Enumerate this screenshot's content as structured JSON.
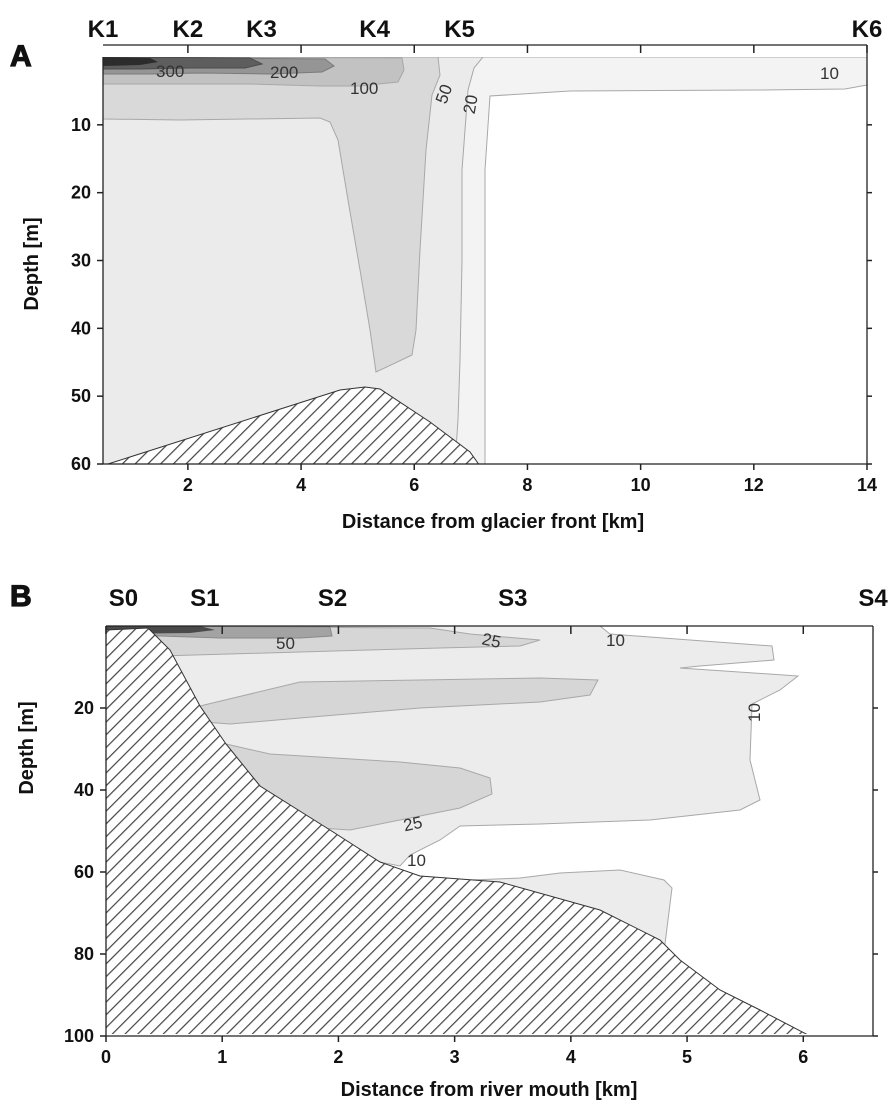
{
  "colors": {
    "level_10": "#f3f3f3",
    "level_20": "#e9e9e9",
    "level_50": "#d5d5d5",
    "level_100": "#bdbdbd",
    "level_200": "#8e8e8e",
    "level_300": "#555555",
    "level_top": "#2a2a2a",
    "hatch": "#444444"
  },
  "chart_data": [
    {
      "panel": "A",
      "type": "contour",
      "xlabel": "Distance from glacier front [km]",
      "ylabel": "Depth [m]",
      "xlim": [
        0.5,
        14
      ],
      "ylim": [
        60,
        0
      ],
      "xticks": [
        2,
        4,
        6,
        8,
        10,
        12,
        14
      ],
      "yticks": [
        10,
        20,
        30,
        40,
        50,
        60
      ],
      "stations": [
        {
          "name": "K1",
          "x": 0.5
        },
        {
          "name": "K2",
          "x": 2
        },
        {
          "name": "K3",
          "x": 3.3
        },
        {
          "name": "K4",
          "x": 5.3
        },
        {
          "name": "K5",
          "x": 6.8
        },
        {
          "name": "K6",
          "x": 14
        }
      ],
      "contour_levels": [
        10,
        20,
        50,
        100,
        200,
        300
      ],
      "contour_labels": [
        {
          "text": "300",
          "x": 1.6,
          "y": 1.8
        },
        {
          "text": "200",
          "x": 3.5,
          "y": 1.8
        },
        {
          "text": "100",
          "x": 4.6,
          "y": 4.5
        },
        {
          "text": "50",
          "x": 6.4,
          "y": 4.5
        },
        {
          "text": "20",
          "x": 7.1,
          "y": 6.5
        },
        {
          "text": "10",
          "x": 13.2,
          "y": 1.5
        }
      ],
      "bottom": [
        [
          0.5,
          60
        ],
        [
          4.8,
          49
        ],
        [
          5.3,
          49.5
        ],
        [
          7.0,
          60
        ]
      ]
    },
    {
      "panel": "B",
      "type": "contour",
      "xlabel": "Distance from river mouth [km]",
      "ylabel": "Depth [m]",
      "xlim": [
        0,
        6.6
      ],
      "ylim": [
        100,
        0
      ],
      "xticks": [
        0,
        1,
        2,
        3,
        4,
        5,
        6
      ],
      "yticks": [
        20,
        40,
        60,
        80,
        100
      ],
      "stations": [
        {
          "name": "S0",
          "x": 0.15
        },
        {
          "name": "S1",
          "x": 0.85
        },
        {
          "name": "S2",
          "x": 1.95
        },
        {
          "name": "S3",
          "x": 3.5
        },
        {
          "name": "S4",
          "x": 6.6
        }
      ],
      "contour_levels": [
        10,
        25,
        50
      ],
      "contour_labels": [
        {
          "text": "50",
          "x": 1.55,
          "y": 3.5
        },
        {
          "text": "25",
          "x": 3.3,
          "y": 3.5
        },
        {
          "text": "10",
          "x": 4.35,
          "y": 3
        },
        {
          "text": "10",
          "x": 5.45,
          "y": 21
        },
        {
          "text": "25",
          "x": 2.6,
          "y": 49
        },
        {
          "text": "10",
          "x": 2.6,
          "y": 58
        }
      ],
      "bottom": [
        [
          0,
          2
        ],
        [
          0.5,
          2
        ],
        [
          1.5,
          33
        ],
        [
          2.6,
          60
        ],
        [
          3.2,
          63
        ],
        [
          4.0,
          66
        ],
        [
          5.0,
          82
        ],
        [
          5.9,
          100
        ]
      ]
    }
  ]
}
